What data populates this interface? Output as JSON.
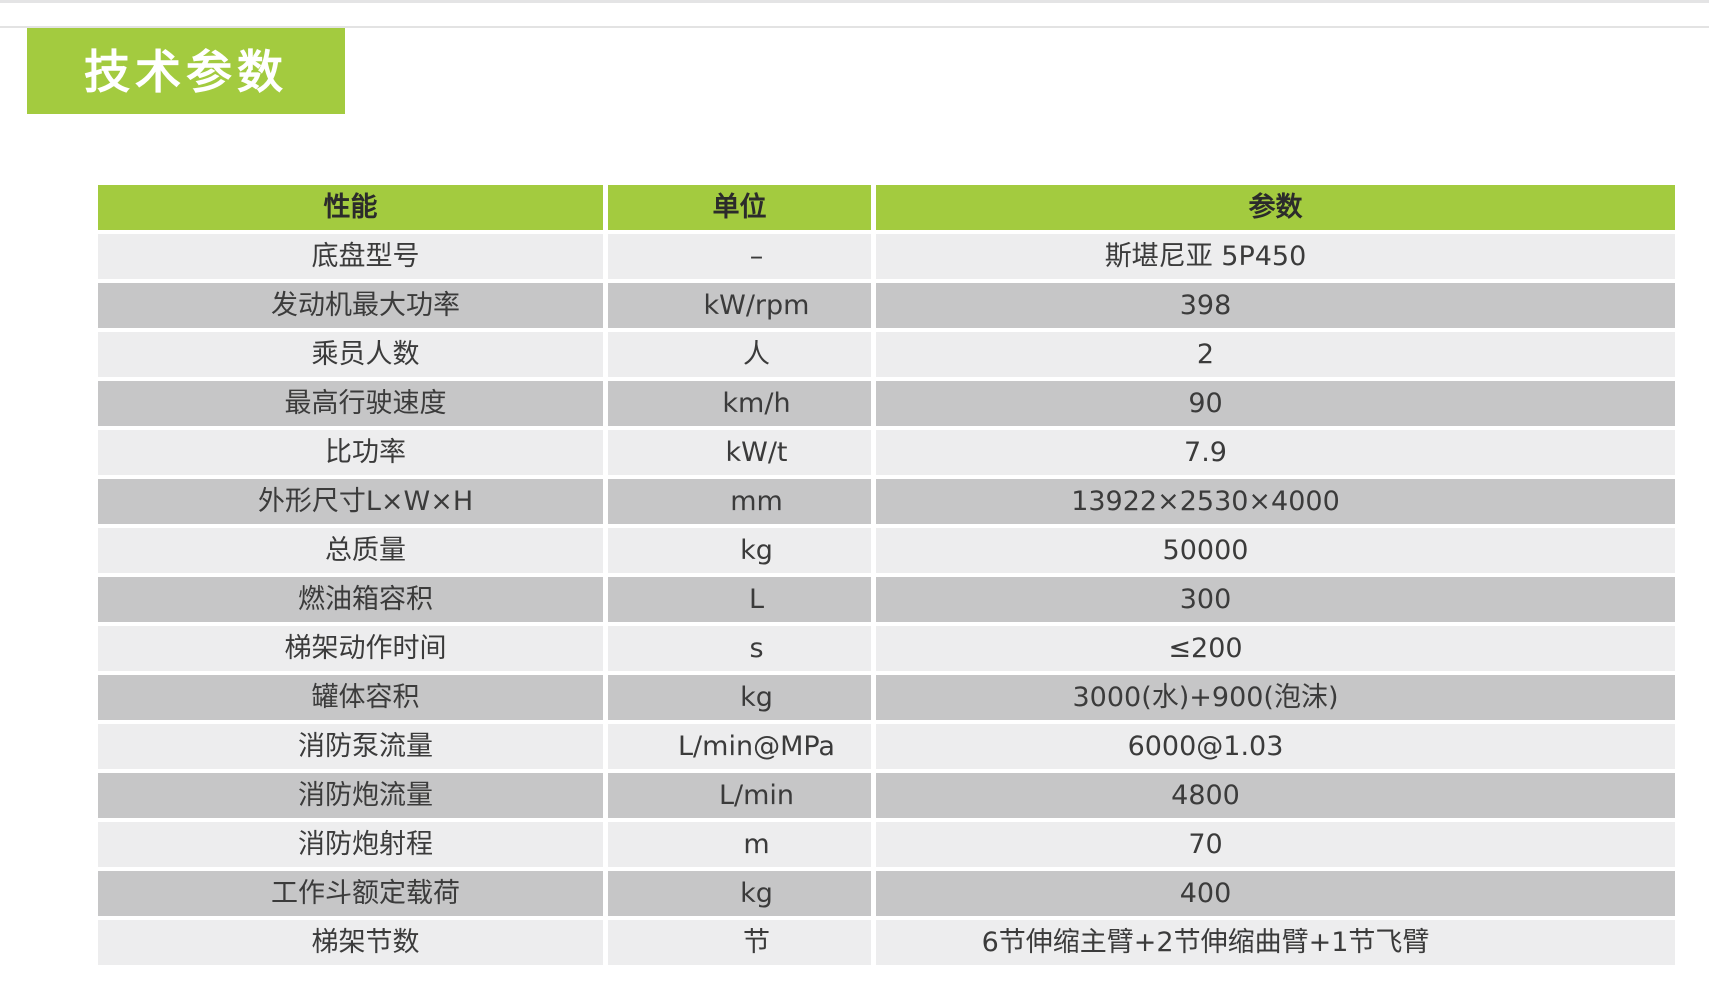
{
  "colors": {
    "accent_green": "#A3CB3F",
    "row_light": "#EDEDEE",
    "row_dark": "#C6C6C7",
    "header_text": "#2B2B2B",
    "cell_text": "#3B3B3B",
    "title_text": "#FFFFFF"
  },
  "title": {
    "text": "技术参数"
  },
  "table": {
    "columns": [
      {
        "key": "name",
        "label": "性能"
      },
      {
        "key": "unit",
        "label": "单位"
      },
      {
        "key": "value",
        "label": "参数"
      }
    ],
    "rows": [
      {
        "name": "底盘型号",
        "unit": "–",
        "value": "斯堪尼亚 5P450"
      },
      {
        "name": "发动机最大功率",
        "unit": "kW/rpm",
        "value": "398"
      },
      {
        "name": "乘员人数",
        "unit": "人",
        "value": "2"
      },
      {
        "name": "最高行驶速度",
        "unit": "km/h",
        "value": "90"
      },
      {
        "name": "比功率",
        "unit": "kW/t",
        "value": "7.9"
      },
      {
        "name": "外形尺寸L×W×H",
        "unit": "mm",
        "value": "13922×2530×4000"
      },
      {
        "name": "总质量",
        "unit": "kg",
        "value": "50000"
      },
      {
        "name": "燃油箱容积",
        "unit": "L",
        "value": "300"
      },
      {
        "name": "梯架动作时间",
        "unit": "s",
        "value": "≤200"
      },
      {
        "name": "罐体容积",
        "unit": "kg",
        "value": "3000(水)+900(泡沫)"
      },
      {
        "name": "消防泵流量",
        "unit": "L/min@MPa",
        "value": "6000@1.03"
      },
      {
        "name": "消防炮流量",
        "unit": "L/min",
        "value": "4800"
      },
      {
        "name": "消防炮射程",
        "unit": "m",
        "value": "70"
      },
      {
        "name": "工作斗额定载荷",
        "unit": "kg",
        "value": "400"
      },
      {
        "name": "梯架节数",
        "unit": "节",
        "value": "6节伸缩主臂+2节伸缩曲臂+1节飞臂"
      }
    ]
  }
}
